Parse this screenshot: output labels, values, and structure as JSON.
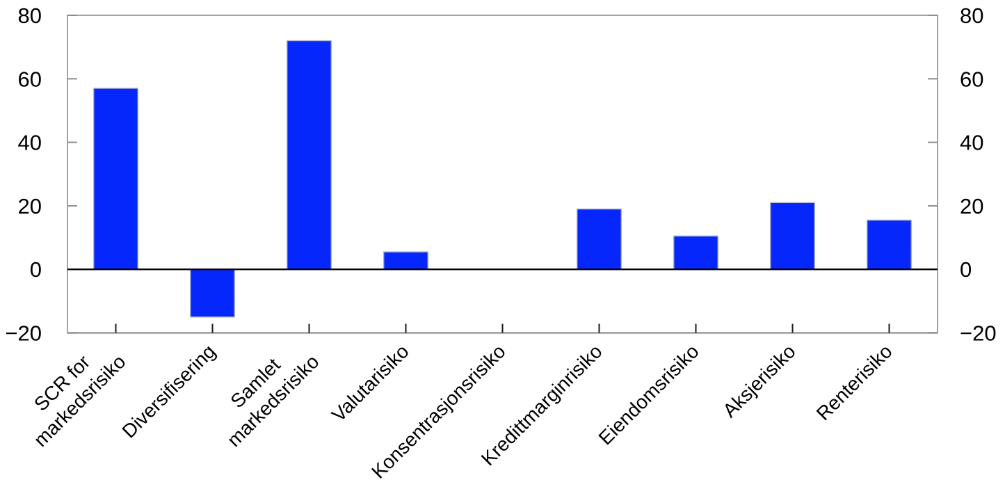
{
  "chart_data": {
    "type": "bar",
    "title": "",
    "xlabel": "",
    "ylabel": "",
    "categories": [
      "SCR for\nmarkedsrisiko",
      "Diversifisering",
      "Samlet\nmarkedsrisiko",
      "Valutarisiko",
      "Konsentrasjonsrisiko",
      "Kredittmarginrisiko",
      "Eiendomsrisiko",
      "Aksjerisiko",
      "Renterisiko"
    ],
    "values": [
      57,
      -15,
      72,
      5.5,
      0,
      19,
      10.5,
      21,
      15.5
    ],
    "ylim": [
      -20,
      80
    ],
    "yticks": [
      -20,
      0,
      20,
      40,
      60,
      80
    ],
    "y_axis_sides": [
      "left",
      "right"
    ],
    "x_tick_label_rotation_deg": 45,
    "grid": false,
    "legend": null,
    "colors": {
      "bar_fill": "#0527fc",
      "bar_edge": "#aab0cf",
      "axis_frame": "#8c8c8c",
      "bottom_axis": "#9b9b9b",
      "zero_line": "#000000",
      "x_tick": "#1a1a1a",
      "y_tick": "#8c8c8c",
      "text": "#000000",
      "background": "#ffffff"
    }
  }
}
